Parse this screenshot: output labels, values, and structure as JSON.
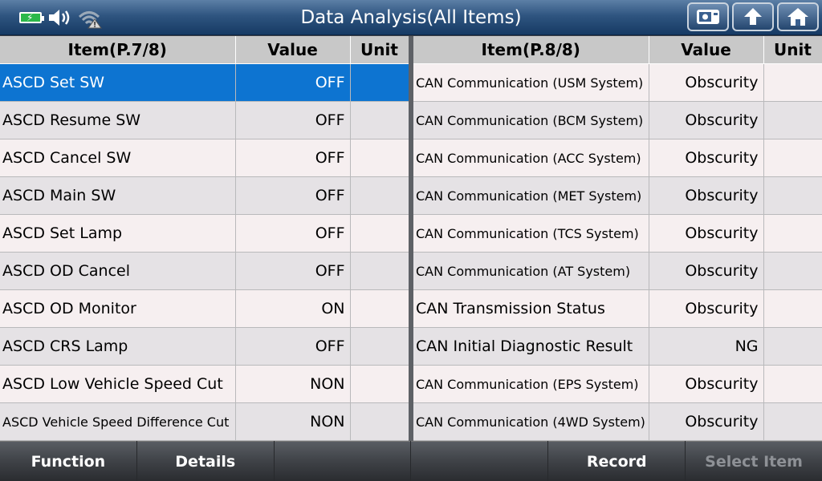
{
  "header": {
    "title": "Data Analysis(All Items)"
  },
  "left_table": {
    "columns": [
      "Item(P.7/8)",
      "Value",
      "Unit"
    ],
    "rows": [
      {
        "item": "ASCD Set SW",
        "value": "OFF",
        "unit": ""
      },
      {
        "item": "ASCD Resume SW",
        "value": "OFF",
        "unit": ""
      },
      {
        "item": "ASCD Cancel SW",
        "value": "OFF",
        "unit": ""
      },
      {
        "item": "ASCD Main SW",
        "value": "OFF",
        "unit": ""
      },
      {
        "item": "ASCD Set Lamp",
        "value": "OFF",
        "unit": ""
      },
      {
        "item": "ASCD OD Cancel",
        "value": "OFF",
        "unit": ""
      },
      {
        "item": "ASCD OD Monitor",
        "value": "ON",
        "unit": ""
      },
      {
        "item": "ASCD CRS Lamp",
        "value": "OFF",
        "unit": ""
      },
      {
        "item": "ASCD Low Vehicle Speed Cut",
        "value": "NON",
        "unit": ""
      },
      {
        "item": "ASCD Vehicle Speed Difference Cut",
        "value": "NON",
        "unit": ""
      }
    ]
  },
  "right_table": {
    "columns": [
      "Item(P.8/8)",
      "Value",
      "Unit"
    ],
    "rows": [
      {
        "item": "CAN Communication (USM System)",
        "value": "Obscurity",
        "unit": ""
      },
      {
        "item": "CAN Communication (BCM System)",
        "value": "Obscurity",
        "unit": ""
      },
      {
        "item": "CAN Communication (ACC System)",
        "value": "Obscurity",
        "unit": ""
      },
      {
        "item": "CAN Communication (MET System)",
        "value": "Obscurity",
        "unit": ""
      },
      {
        "item": "CAN Communication (TCS System)",
        "value": "Obscurity",
        "unit": ""
      },
      {
        "item": "CAN Communication (AT System)",
        "value": "Obscurity",
        "unit": ""
      },
      {
        "item": "CAN Transmission Status",
        "value": "Obscurity",
        "unit": ""
      },
      {
        "item": "CAN Initial Diagnostic Result",
        "value": "NG",
        "unit": ""
      },
      {
        "item": "CAN Communication (EPS System)",
        "value": "Obscurity",
        "unit": ""
      },
      {
        "item": "CAN Communication (4WD System)",
        "value": "Obscurity",
        "unit": ""
      }
    ]
  },
  "footer": {
    "buttons": [
      {
        "label": "Function"
      },
      {
        "label": "Details"
      },
      {
        "label": ""
      },
      {
        "label": ""
      },
      {
        "label": "Record"
      },
      {
        "label": "Select Item"
      }
    ]
  },
  "icons": {
    "battery": "battery-charging-icon",
    "speaker": "speaker-icon",
    "wifi": "wifi-warning-icon",
    "screenshot": "camera-icon",
    "back": "up-arrow-icon",
    "home": "home-icon"
  },
  "colors": {
    "selected_row": "#0d74d1",
    "header_bar": "#2f5580",
    "battery": "#2cb84a"
  }
}
